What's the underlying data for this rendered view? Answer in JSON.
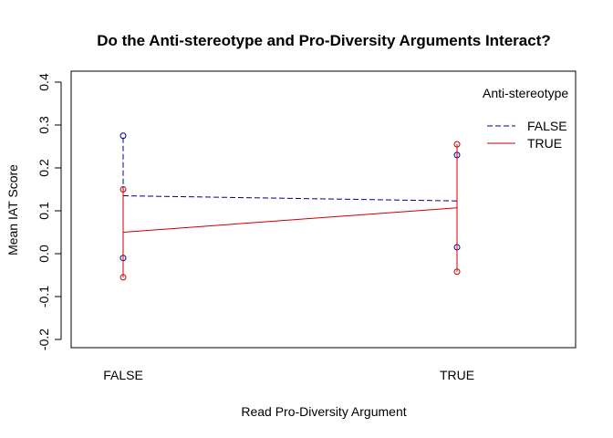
{
  "chart_data": {
    "type": "line",
    "title": "Do the Anti-stereotype and Pro-Diversity Arguments Interact?",
    "xlabel": "Read Pro-Diversity Argument",
    "ylabel": "Mean IAT Score",
    "categories": [
      "FALSE",
      "TRUE"
    ],
    "ylim": [
      -0.2,
      0.4
    ],
    "yticks": [
      -0.2,
      -0.1,
      0.0,
      0.1,
      0.2,
      0.3,
      0.4
    ],
    "ytick_labels": [
      "-0.2",
      "-0.1",
      "0.0",
      "0.1",
      "0.2",
      "0.3",
      "0.4"
    ],
    "grid": false,
    "legend": {
      "title": "Anti-stereotype",
      "placement": "top-right"
    },
    "series": [
      {
        "name": "FALSE",
        "color": "#00008b",
        "line_style": "dashed",
        "values": [
          0.135,
          0.123
        ],
        "error_lower": [
          -0.01,
          0.015
        ],
        "error_upper": [
          0.275,
          0.23
        ]
      },
      {
        "name": "TRUE",
        "color": "#cd0000",
        "line_style": "solid",
        "values": [
          0.05,
          0.107
        ],
        "error_lower": [
          -0.055,
          -0.042
        ],
        "error_upper": [
          0.15,
          0.255
        ]
      }
    ]
  }
}
